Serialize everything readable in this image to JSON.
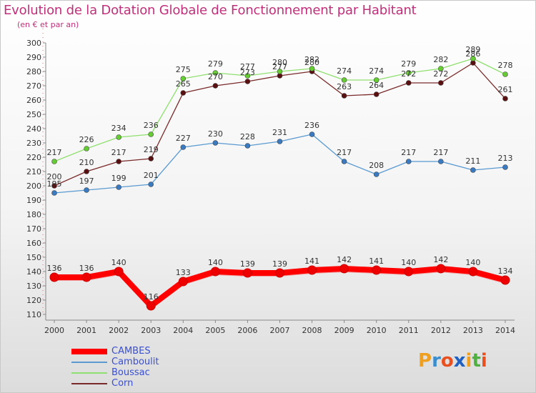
{
  "title": "Evolution de la Dotation Globale de Fonctionnement par Habitant",
  "subtitle": "(en € et par an)",
  "logo_letters": [
    "P",
    "r",
    "o",
    "x",
    "i",
    "t",
    "i"
  ],
  "logo_colors": [
    "#f0a020",
    "#3a8ed0",
    "#e85020",
    "#2060c0",
    "#f0a020",
    "#50b040",
    "#e85020"
  ],
  "chart_data": {
    "type": "line",
    "x": [
      "2000",
      "2001",
      "2002",
      "2003",
      "2004",
      "2005",
      "2006",
      "2007",
      "2008",
      "2009",
      "2010",
      "2011",
      "2012",
      "2013",
      "2014"
    ],
    "ylim": [
      110,
      300
    ],
    "yticks": [
      110,
      120,
      130,
      140,
      150,
      160,
      170,
      180,
      190,
      200,
      210,
      220,
      230,
      240,
      250,
      260,
      270,
      280,
      290,
      300
    ],
    "grid": false,
    "legend_position": "bottom-left",
    "series": [
      {
        "name": "CAMBES",
        "color": "#ff0000",
        "marker": "#ee0000",
        "values": [
          136,
          136,
          140,
          116,
          133,
          140,
          139,
          139,
          141,
          142,
          141,
          140,
          142,
          140,
          134
        ]
      },
      {
        "name": "Camboulit",
        "color": "#5a9ad0",
        "marker": "#3a7ac0",
        "values": [
          195,
          197,
          199,
          201,
          227,
          230,
          228,
          231,
          236,
          217,
          208,
          217,
          217,
          211,
          213
        ]
      },
      {
        "name": "Boussac",
        "color": "#90e070",
        "marker": "#66cc33",
        "values": [
          217,
          226,
          234,
          236,
          275,
          279,
          277,
          280,
          282,
          274,
          274,
          279,
          282,
          289,
          278
        ]
      },
      {
        "name": "Corn",
        "color": "#7a2a2a",
        "marker": "#5a1010",
        "values": [
          200,
          210,
          217,
          219,
          265,
          270,
          273,
          277,
          280,
          263,
          264,
          272,
          272,
          286,
          261
        ]
      }
    ]
  }
}
